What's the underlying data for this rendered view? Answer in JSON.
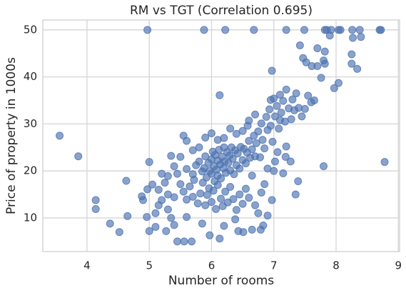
{
  "chart_data": {
    "type": "scatter",
    "title": "RM vs TGT (Correlation 0.695)",
    "x_label": "Number of rooms",
    "y_label": "Price of property in 1000s",
    "color": "#4c72b0",
    "grid": true,
    "xlim": [
      3.29,
      9.02
    ],
    "ylim": [
      2.85,
      52.1
    ],
    "xticks": [
      4,
      5,
      6,
      7,
      8,
      9
    ],
    "yticks": [
      10,
      20,
      30,
      40,
      50
    ],
    "x": [
      3.56,
      3.86,
      4.14,
      4.14,
      4.37,
      4.52,
      4.63,
      4.65,
      4.88,
      4.9,
      4.97,
      5.0,
      4.96,
      4.97,
      5.0,
      8.78,
      8.7,
      8.72,
      8.38,
      8.26,
      8.04,
      7.92,
      7.82,
      7.85,
      7.49,
      7.2,
      6.68,
      6.22,
      5.88,
      8.4,
      8.27,
      8.25,
      8.25,
      8.34,
      8.04,
      7.97,
      7.82,
      7.8,
      7.76,
      7.47,
      7.52,
      7.61,
      7.82,
      6.97,
      7.42,
      7.36,
      7.65,
      6.13,
      7.9,
      7.7,
      8.07,
      7.35,
      7.39,
      6.83,
      6.97,
      5.56,
      5.45,
      5.68,
      5.97,
      6.13,
      5.4,
      5.27,
      5.3,
      5.15,
      6.43,
      6.51,
      6.79,
      6.75,
      6.9,
      6.65,
      6.38,
      6.2,
      5.85,
      5.6,
      5.35,
      5.1,
      7.06,
      7.19,
      7.27,
      7.8,
      5.6,
      5.7,
      5.75,
      5.8,
      5.85,
      5.88,
      5.9,
      5.92,
      5.95,
      5.97,
      6.0,
      6.0,
      6.02,
      6.04,
      6.05,
      6.06,
      6.08,
      6.1,
      6.1,
      6.12,
      6.14,
      6.15,
      6.17,
      6.19,
      6.2,
      6.21,
      6.23,
      6.25,
      6.27,
      6.29,
      6.3,
      6.32,
      6.34,
      6.36,
      6.38,
      6.4,
      6.42,
      6.45,
      6.47,
      6.5,
      6.52,
      6.55,
      6.57,
      6.6,
      6.62,
      6.65,
      6.68,
      6.7,
      6.72,
      6.75,
      6.78,
      6.8,
      6.82,
      6.85,
      6.88,
      6.9,
      6.93,
      6.95,
      6.98,
      7.0,
      7.02,
      7.05,
      7.08,
      7.1,
      7.12,
      7.15,
      7.18,
      7.2,
      7.24,
      7.28,
      7.3,
      7.33,
      7.4,
      7.45,
      7.5,
      7.55,
      7.6,
      7.7,
      7.1,
      6.95,
      5.5,
      5.55,
      5.6,
      5.65,
      5.7,
      5.72,
      5.78,
      5.82,
      5.86,
      5.9,
      5.93,
      5.96,
      6.0,
      6.03,
      6.07,
      6.1,
      6.15,
      6.18,
      6.22,
      6.26,
      6.3,
      6.35,
      6.4,
      6.45,
      6.5,
      6.55,
      6.6,
      6.7,
      6.8,
      5.4,
      5.3,
      5.2,
      5.1,
      5.45,
      5.35,
      5.5,
      5.55,
      5.6,
      5.2,
      5.25,
      5.15,
      5.05,
      5.4,
      5.3,
      5.7,
      5.8,
      5.9,
      6.0,
      6.1,
      6.2,
      6.3,
      6.4,
      6.5,
      6.6,
      6.7,
      6.58,
      7.0,
      7.2,
      7.02,
      6.9,
      6.85,
      6.65,
      7.15
    ],
    "values": [
      27.5,
      23.1,
      13.8,
      11.9,
      8.8,
      7.0,
      17.9,
      10.4,
      14.6,
      13.8,
      50,
      21.9,
      10.2,
      16.1,
      7.2,
      21.9,
      50,
      50,
      50,
      50,
      50,
      50,
      50,
      50,
      50,
      50,
      50,
      50,
      50,
      48.5,
      48.3,
      44.8,
      42.8,
      41.7,
      38.7,
      37.6,
      45.4,
      43.5,
      39.8,
      44,
      43.1,
      42.3,
      42.8,
      41.3,
      46.7,
      36.5,
      35,
      36.1,
      48.8,
      46.1,
      50,
      15.0,
      17.8,
      8.4,
      13.8,
      5.0,
      5.0,
      5.0,
      6.3,
      5.6,
      8.5,
      7.2,
      11.8,
      12.7,
      7.2,
      7.0,
      7.5,
      11.0,
      10.5,
      7.5,
      9.7,
      8.3,
      8.8,
      10.2,
      10.0,
      8.1,
      24,
      23,
      22,
      21,
      20.4,
      19.3,
      21.2,
      22.0,
      19.9,
      20.6,
      23.1,
      18.6,
      21.7,
      20.0,
      22.5,
      19.4,
      24.1,
      21.0,
      17.8,
      23.4,
      20.3,
      22.2,
      19.0,
      24.5,
      21.4,
      18.4,
      23.0,
      20.6,
      25.0,
      22.0,
      19.6,
      24.0,
      21.7,
      23.3,
      20.1,
      25.0,
      22.6,
      19.3,
      24.4,
      21.2,
      23.7,
      20.5,
      25.1,
      22.3,
      24.7,
      21.6,
      23.9,
      26.4,
      22.8,
      24.6,
      27.5,
      23.1,
      25.9,
      28.4,
      22.9,
      30.1,
      26.6,
      24.8,
      31.5,
      28.7,
      33.1,
      29.6,
      26.2,
      35.4,
      31.6,
      33.8,
      29.0,
      36.2,
      32.4,
      34.9,
      30.5,
      37.3,
      33.3,
      31.0,
      35.2,
      32.9,
      33.4,
      31.6,
      33.2,
      36.0,
      34.6,
      42.3,
      30.8,
      35.1,
      17.2,
      15.6,
      13.9,
      16.7,
      14.5,
      18.1,
      13.1,
      15.2,
      17.5,
      12.7,
      14.9,
      16.3,
      13.4,
      15.8,
      11.9,
      17.0,
      14.1,
      12.5,
      15.6,
      13.3,
      16.6,
      14.0,
      11.7,
      15.0,
      13.0,
      16.2,
      14.3,
      12.7,
      15.4,
      14.4,
      15.0,
      13.8,
      11.0,
      19.4,
      23.2,
      23.0,
      27.5,
      26.4,
      19.4,
      17.5,
      16.0,
      17.1,
      21.0,
      18.9,
      24.4,
      25.0,
      27.1,
      28.0,
      26.6,
      27.0,
      29.0,
      27.9,
      28.5,
      30.7,
      32.0,
      29.6,
      20.0,
      25.2,
      22.0,
      20.5,
      17.2,
      19.0,
      19.5
    ]
  }
}
